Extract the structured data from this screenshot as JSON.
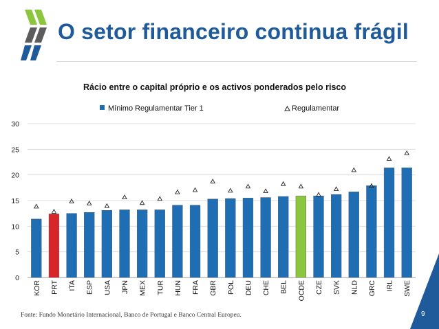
{
  "header": {
    "title": "O setor financeiro continua frágil"
  },
  "chart_data": {
    "type": "bar",
    "title": "Rácio entre o capital próprio e os activos ponderados pelo risco",
    "xlabel": "",
    "ylabel": "",
    "ylim": [
      0,
      30
    ],
    "yticks": [
      0,
      5,
      10,
      15,
      20,
      25,
      30
    ],
    "grid": true,
    "legend_position": "top",
    "categories": [
      "KOR",
      "PRT",
      "ITA",
      "ESP",
      "USA",
      "JPN",
      "MEX",
      "TUR",
      "HUN",
      "FRA",
      "GBR",
      "POL",
      "DEU",
      "CHE",
      "BEL",
      "OCDE",
      "CZE",
      "SVK",
      "NLD",
      "GRC",
      "IRL",
      "SWE"
    ],
    "series": [
      {
        "name": "Mínimo Regulamentar Tier 1",
        "kind": "bar",
        "color": "#1f6db2",
        "values": [
          11.4,
          12.4,
          12.5,
          12.7,
          13.1,
          13.2,
          13.2,
          13.2,
          14.1,
          14.1,
          15.3,
          15.4,
          15.5,
          15.6,
          15.8,
          15.9,
          15.9,
          16.2,
          16.7,
          17.9,
          21.4,
          21.4
        ],
        "highlights": [
          {
            "category": "PRT",
            "color": "#d7262b"
          },
          {
            "category": "OCDE",
            "color": "#8cc63f"
          }
        ]
      },
      {
        "name": "Regulamentar",
        "kind": "marker",
        "marker": "triangle",
        "color": "#222222",
        "values": [
          14.0,
          13.0,
          15.0,
          14.6,
          14.1,
          15.8,
          14.7,
          15.5,
          16.8,
          17.2,
          18.9,
          17.1,
          17.9,
          17.0,
          18.4,
          17.9,
          16.3,
          17.4,
          21.1,
          18.0,
          23.3,
          24.4
        ]
      }
    ]
  },
  "footer": {
    "source": "Fonte: Fundo Monetário Internacional, Banco de Portugal e Banco Central Europeu.",
    "page": "9"
  }
}
